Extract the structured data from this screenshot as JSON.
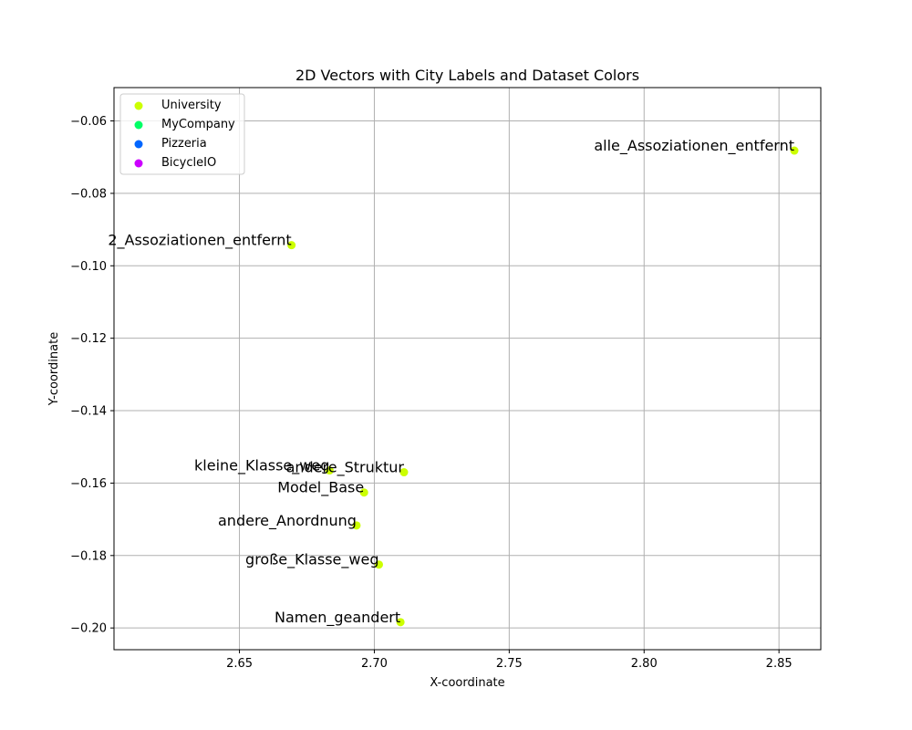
{
  "chart_data": {
    "type": "scatter",
    "title": "2D Vectors with City Labels and Dataset Colors",
    "xlabel": "X-coordinate",
    "ylabel": "Y-coordinate",
    "xlim": [
      2.6035,
      2.8655
    ],
    "ylim": [
      -0.206,
      -0.0508
    ],
    "xticks": [
      2.65,
      2.7,
      2.75,
      2.8,
      2.85
    ],
    "xtick_labels": [
      "2.65",
      "2.70",
      "2.75",
      "2.80",
      "2.85"
    ],
    "yticks": [
      -0.2,
      -0.18,
      -0.16,
      -0.14,
      -0.12,
      -0.1,
      -0.08,
      -0.06
    ],
    "ytick_labels": [
      "−0.20",
      "−0.18",
      "−0.16",
      "−0.14",
      "−0.12",
      "−0.10",
      "−0.08",
      "−0.06"
    ],
    "grid": true,
    "legend_position": "top-left",
    "legend": [
      {
        "name": "University",
        "color": "#ccff00"
      },
      {
        "name": "MyCompany",
        "color": "#00ff66"
      },
      {
        "name": "Pizzeria",
        "color": "#0066ff"
      },
      {
        "name": "BicycleIO",
        "color": "#cc00ff"
      }
    ],
    "series": [
      {
        "name": "University",
        "color": "#ccff00",
        "points": [
          {
            "x": 2.8557,
            "y": -0.0682,
            "label": "alle_Assoziationen_entfernt"
          },
          {
            "x": 2.6693,
            "y": -0.0943,
            "label": "2_Assoziationen_entfernt"
          },
          {
            "x": 2.6834,
            "y": -0.1565,
            "label": "kleine_Klasse_weg"
          },
          {
            "x": 2.711,
            "y": -0.157,
            "label": "andere_Struktur"
          },
          {
            "x": 2.6962,
            "y": -0.1626,
            "label": "Model_Base"
          },
          {
            "x": 2.6934,
            "y": -0.1717,
            "label": "andere_Anordnung"
          },
          {
            "x": 2.7017,
            "y": -0.1825,
            "label": "große_Klasse_weg"
          },
          {
            "x": 2.7097,
            "y": -0.1984,
            "label": "Namen_geandert"
          }
        ]
      },
      {
        "name": "MyCompany",
        "color": "#00ff66",
        "points": []
      },
      {
        "name": "Pizzeria",
        "color": "#0066ff",
        "points": []
      },
      {
        "name": "BicycleIO",
        "color": "#cc00ff",
        "points": []
      }
    ]
  }
}
